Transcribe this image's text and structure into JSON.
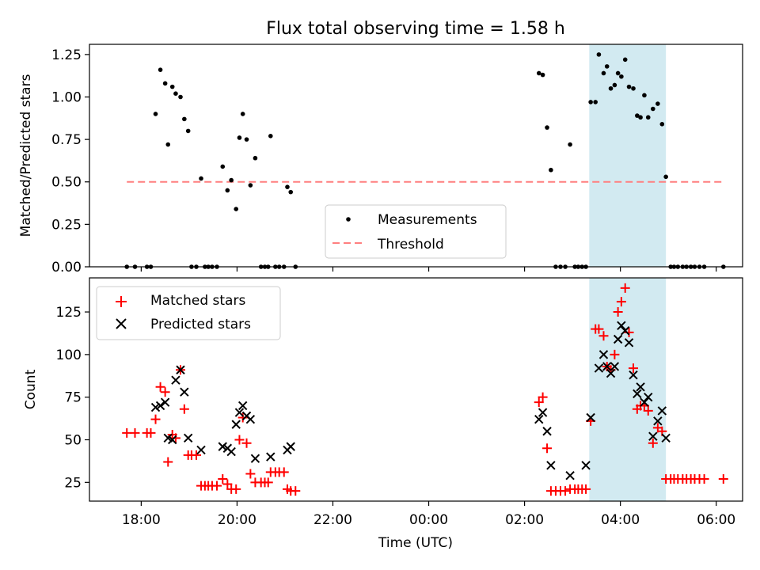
{
  "chart_data": {
    "title": "Flux total observing time = 1.58 h",
    "type": "scatter",
    "x_axis": {
      "label": "Time (UTC)",
      "range_hours": [
        -1.08,
        12.55
      ],
      "ticks": [
        {
          "hour": 0,
          "label": "18:00"
        },
        {
          "hour": 2,
          "label": "20:00"
        },
        {
          "hour": 4,
          "label": "22:00"
        },
        {
          "hour": 6,
          "label": "00:00"
        },
        {
          "hour": 8,
          "label": "02:00"
        },
        {
          "hour": 10,
          "label": "04:00"
        },
        {
          "hour": 12,
          "label": "06:00"
        }
      ],
      "note": "hours since 18:00 UTC"
    },
    "shaded_interval_hours": [
      9.35,
      10.95
    ],
    "shade_color": "#add8e6",
    "top_panel": {
      "ylabel": "Matched/Predicted stars",
      "ylim": [
        0,
        1.31
      ],
      "yticks": [
        {
          "v": 0.0,
          "label": "0.00"
        },
        {
          "v": 0.25,
          "label": "0.25"
        },
        {
          "v": 0.5,
          "label": "0.50"
        },
        {
          "v": 0.75,
          "label": "0.75"
        },
        {
          "v": 1.0,
          "label": "1.00"
        },
        {
          "v": 1.25,
          "label": "1.25"
        }
      ],
      "threshold": {
        "value": 0.5,
        "x_range_hours": [
          -0.3,
          12.15
        ],
        "color": "#ff7f7f"
      },
      "legend": {
        "position": "lower center",
        "entries": [
          "Measurements",
          "Threshold"
        ]
      },
      "measurements": [
        [
          -0.3,
          0
        ],
        [
          -0.13,
          0
        ],
        [
          0.12,
          0
        ],
        [
          0.2,
          0
        ],
        [
          0.3,
          0.9
        ],
        [
          0.4,
          1.16
        ],
        [
          0.5,
          1.08
        ],
        [
          0.56,
          0.72
        ],
        [
          0.65,
          1.06
        ],
        [
          0.72,
          1.02
        ],
        [
          0.82,
          1.0
        ],
        [
          0.9,
          0.87
        ],
        [
          0.98,
          0.8
        ],
        [
          1.05,
          0
        ],
        [
          1.15,
          0
        ],
        [
          1.25,
          0.52
        ],
        [
          1.33,
          0
        ],
        [
          1.4,
          0
        ],
        [
          1.48,
          0
        ],
        [
          1.58,
          0
        ],
        [
          1.7,
          0.59
        ],
        [
          1.8,
          0.45
        ],
        [
          1.88,
          0.51
        ],
        [
          1.98,
          0.34
        ],
        [
          2.05,
          0.76
        ],
        [
          2.12,
          0.9
        ],
        [
          2.2,
          0.75
        ],
        [
          2.28,
          0.48
        ],
        [
          2.38,
          0.64
        ],
        [
          2.5,
          0
        ],
        [
          2.58,
          0
        ],
        [
          2.65,
          0
        ],
        [
          2.7,
          0.77
        ],
        [
          2.8,
          0
        ],
        [
          2.88,
          0
        ],
        [
          2.98,
          0
        ],
        [
          3.05,
          0.47
        ],
        [
          3.12,
          0.44
        ],
        [
          3.22,
          0
        ],
        [
          8.3,
          1.14
        ],
        [
          8.38,
          1.13
        ],
        [
          8.47,
          0.82
        ],
        [
          8.55,
          0.57
        ],
        [
          8.65,
          0
        ],
        [
          8.75,
          0
        ],
        [
          8.85,
          0
        ],
        [
          8.95,
          0.72
        ],
        [
          9.05,
          0
        ],
        [
          9.12,
          0
        ],
        [
          9.2,
          0
        ],
        [
          9.28,
          0
        ],
        [
          9.38,
          0.97
        ],
        [
          9.48,
          0.97
        ],
        [
          9.55,
          1.25
        ],
        [
          9.65,
          1.14
        ],
        [
          9.72,
          1.18
        ],
        [
          9.8,
          1.05
        ],
        [
          9.88,
          1.07
        ],
        [
          9.95,
          1.14
        ],
        [
          10.02,
          1.12
        ],
        [
          10.1,
          1.22
        ],
        [
          10.18,
          1.06
        ],
        [
          10.27,
          1.05
        ],
        [
          10.35,
          0.89
        ],
        [
          10.42,
          0.88
        ],
        [
          10.5,
          1.01
        ],
        [
          10.58,
          0.88
        ],
        [
          10.68,
          0.93
        ],
        [
          10.78,
          0.96
        ],
        [
          10.87,
          0.84
        ],
        [
          10.95,
          0.53
        ],
        [
          11.05,
          0
        ],
        [
          11.12,
          0
        ],
        [
          11.2,
          0
        ],
        [
          11.3,
          0
        ],
        [
          11.38,
          0
        ],
        [
          11.47,
          0
        ],
        [
          11.55,
          0
        ],
        [
          11.65,
          0
        ],
        [
          11.75,
          0
        ],
        [
          12.15,
          0
        ]
      ]
    },
    "bottom_panel": {
      "ylabel": "Count",
      "ylim": [
        14,
        145
      ],
      "yticks": [
        {
          "v": 25,
          "label": "25"
        },
        {
          "v": 50,
          "label": "50"
        },
        {
          "v": 75,
          "label": "75"
        },
        {
          "v": 100,
          "label": "100"
        },
        {
          "v": 125,
          "label": "125"
        }
      ],
      "legend": {
        "position": "upper left",
        "entries": [
          "Matched stars",
          "Predicted stars"
        ]
      },
      "series": [
        {
          "name": "Matched stars",
          "marker": "+",
          "color": "#ff0000",
          "points": [
            [
              -0.3,
              54
            ],
            [
              -0.13,
              54
            ],
            [
              0.12,
              54
            ],
            [
              0.2,
              54
            ],
            [
              0.3,
              62
            ],
            [
              0.4,
              81
            ],
            [
              0.5,
              78
            ],
            [
              0.56,
              37
            ],
            [
              0.65,
              53
            ],
            [
              0.72,
              51
            ],
            [
              0.82,
              91
            ],
            [
              0.9,
              68
            ],
            [
              0.98,
              41
            ],
            [
              1.05,
              41
            ],
            [
              1.15,
              41
            ],
            [
              1.25,
              23
            ],
            [
              1.33,
              23
            ],
            [
              1.4,
              23
            ],
            [
              1.48,
              23
            ],
            [
              1.58,
              23
            ],
            [
              1.7,
              27
            ],
            [
              1.8,
              24
            ],
            [
              1.88,
              21
            ],
            [
              1.98,
              21
            ],
            [
              2.05,
              50
            ],
            [
              2.12,
              63
            ],
            [
              2.2,
              48
            ],
            [
              2.28,
              30
            ],
            [
              2.38,
              25
            ],
            [
              2.5,
              25
            ],
            [
              2.58,
              25
            ],
            [
              2.65,
              25
            ],
            [
              2.7,
              31
            ],
            [
              2.8,
              31
            ],
            [
              2.88,
              31
            ],
            [
              2.98,
              31
            ],
            [
              3.05,
              21
            ],
            [
              3.12,
              20
            ],
            [
              3.22,
              20
            ],
            [
              8.3,
              72
            ],
            [
              8.38,
              75
            ],
            [
              8.47,
              45
            ],
            [
              8.55,
              20
            ],
            [
              8.65,
              20
            ],
            [
              8.75,
              20
            ],
            [
              8.85,
              20
            ],
            [
              8.95,
              21
            ],
            [
              9.05,
              21
            ],
            [
              9.12,
              21
            ],
            [
              9.2,
              21
            ],
            [
              9.28,
              21
            ],
            [
              9.38,
              61
            ],
            [
              9.48,
              115
            ],
            [
              9.55,
              115
            ],
            [
              9.65,
              111
            ],
            [
              9.72,
              93
            ],
            [
              9.8,
              91
            ],
            [
              9.88,
              100
            ],
            [
              9.95,
              125
            ],
            [
              10.02,
              131
            ],
            [
              10.1,
              139
            ],
            [
              10.18,
              113
            ],
            [
              10.27,
              92
            ],
            [
              10.35,
              68
            ],
            [
              10.42,
              70
            ],
            [
              10.5,
              70
            ],
            [
              10.58,
              67
            ],
            [
              10.68,
              48
            ],
            [
              10.78,
              57
            ],
            [
              10.87,
              55
            ],
            [
              10.95,
              27
            ],
            [
              11.05,
              27
            ],
            [
              11.12,
              27
            ],
            [
              11.2,
              27
            ],
            [
              11.3,
              27
            ],
            [
              11.38,
              27
            ],
            [
              11.47,
              27
            ],
            [
              11.55,
              27
            ],
            [
              11.65,
              27
            ],
            [
              11.75,
              27
            ],
            [
              12.15,
              27
            ]
          ]
        },
        {
          "name": "Predicted stars",
          "marker": "x",
          "color": "#000000",
          "points": [
            [
              0.3,
              69
            ],
            [
              0.4,
              70
            ],
            [
              0.5,
              72
            ],
            [
              0.56,
              51
            ],
            [
              0.65,
              50
            ],
            [
              0.72,
              85
            ],
            [
              0.82,
              91
            ],
            [
              0.9,
              78
            ],
            [
              0.98,
              51
            ],
            [
              1.25,
              44
            ],
            [
              1.7,
              46
            ],
            [
              1.8,
              45
            ],
            [
              1.88,
              43
            ],
            [
              1.98,
              59
            ],
            [
              2.05,
              66
            ],
            [
              2.12,
              70
            ],
            [
              2.2,
              64
            ],
            [
              2.28,
              62
            ],
            [
              2.38,
              39
            ],
            [
              2.7,
              40
            ],
            [
              3.05,
              44
            ],
            [
              3.12,
              46
            ],
            [
              8.3,
              62
            ],
            [
              8.38,
              66
            ],
            [
              8.47,
              55
            ],
            [
              8.55,
              35
            ],
            [
              8.95,
              29
            ],
            [
              9.28,
              35
            ],
            [
              9.38,
              63
            ],
            [
              9.55,
              92
            ],
            [
              9.65,
              100
            ],
            [
              9.72,
              93
            ],
            [
              9.8,
              89
            ],
            [
              9.88,
              93
            ],
            [
              9.95,
              109
            ],
            [
              10.02,
              117
            ],
            [
              10.1,
              114
            ],
            [
              10.18,
              107
            ],
            [
              10.27,
              88
            ],
            [
              10.35,
              77
            ],
            [
              10.42,
              81
            ],
            [
              10.5,
              72
            ],
            [
              10.58,
              75
            ],
            [
              10.68,
              52
            ],
            [
              10.78,
              61
            ],
            [
              10.87,
              67
            ],
            [
              10.95,
              51
            ]
          ]
        }
      ]
    }
  }
}
